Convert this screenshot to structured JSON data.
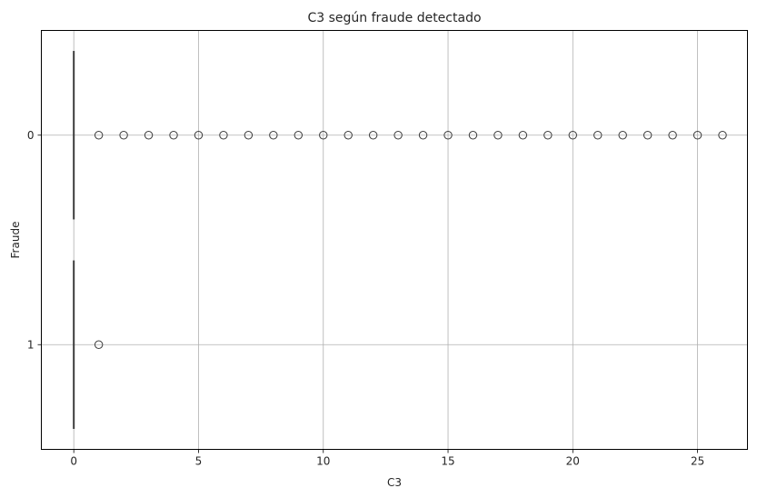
{
  "chart_data": {
    "type": "boxplot",
    "orientation": "horizontal",
    "title": "C3 según fraude detectado",
    "xlabel": "C3",
    "ylabel": "Fraude",
    "xlim": [
      -1.3,
      27.0
    ],
    "xticks": [
      0,
      5,
      10,
      15,
      20,
      25
    ],
    "grid": true,
    "categories": [
      "0",
      "1"
    ],
    "box_color": "#4c72b0",
    "series": [
      {
        "category": "0",
        "min": 0,
        "q1": 0,
        "median": 0,
        "q3": 0,
        "max": 0,
        "outliers": [
          1,
          2,
          3,
          4,
          5,
          6,
          7,
          8,
          9,
          10,
          11,
          12,
          13,
          14,
          15,
          16,
          17,
          18,
          19,
          20,
          21,
          22,
          23,
          24,
          25,
          26
        ]
      },
      {
        "category": "1",
        "min": 0,
        "q1": 0,
        "median": 0,
        "q3": 0,
        "max": 0,
        "outliers": [
          1
        ]
      }
    ]
  }
}
